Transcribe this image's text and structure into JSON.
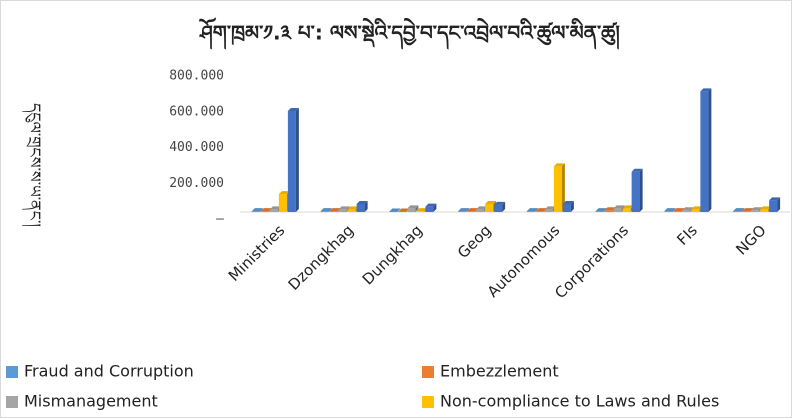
{
  "chart_data": {
    "type": "bar",
    "title": "ཤོག་ཁྲམ་༡.༣ པ་: ལས་སྡེའི་དབྱེ་བ་དང་འབྲེལ་བའི་ཚུལ་མིན་ཚུ།",
    "y_label": "དངུལ་གྲངས་ས་ཡ་ནང་།",
    "categories": [
      "Ministries",
      "Dzongkhag",
      "Dungkhag",
      "Geog",
      "Autonomous",
      "Corporations",
      "FIs",
      "NGO"
    ],
    "series": [
      {
        "name": "Fraud and Corruption",
        "color": "#5b9bd5",
        "values": [
          5,
          5,
          3,
          5,
          5,
          5,
          5,
          5
        ]
      },
      {
        "name": "Embezzlement",
        "color": "#ed7d31",
        "values": [
          5,
          5,
          3,
          5,
          5,
          10,
          5,
          5
        ]
      },
      {
        "name": "Mismanagement",
        "color": "#a5a5a5",
        "values": [
          15,
          15,
          20,
          15,
          15,
          20,
          10,
          10
        ]
      },
      {
        "name": "Non-compliance to Laws and Rules",
        "color": "#ffc000",
        "values": [
          100,
          15,
          5,
          45,
          255,
          20,
          15,
          15
        ]
      },
      {
        "color": "#4472c4",
        "values": [
          565,
          45,
          30,
          40,
          45,
          225,
          675,
          65
        ]
      }
    ],
    "ylim": [
      0,
      800
    ],
    "yticks": [
      {
        "value": 0,
        "label": "–"
      },
      {
        "value": 200,
        "label": "200.000"
      },
      {
        "value": 400,
        "label": "400.000"
      },
      {
        "value": 600,
        "label": "600.000"
      },
      {
        "value": 800,
        "label": "800.000"
      }
    ],
    "grid": false,
    "legend": "bottom"
  }
}
